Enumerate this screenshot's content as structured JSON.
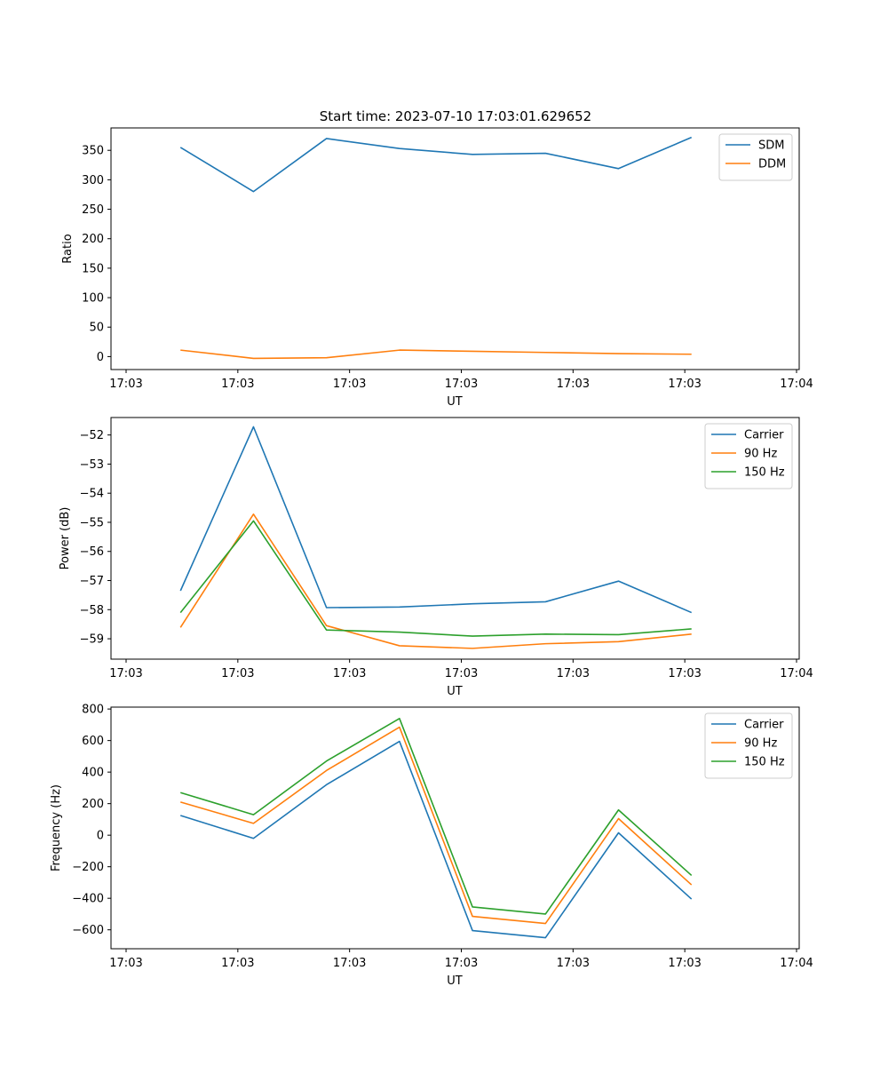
{
  "figure": {
    "title": "Start time: 2023-07-10 17:03:01.629652"
  },
  "colors": {
    "c0": "#1f77b4",
    "c1": "#ff7f0e",
    "c2": "#2ca02c"
  },
  "chart_data": [
    {
      "type": "line",
      "title": "",
      "xlabel": "UT",
      "ylabel": "Ratio",
      "grid": false,
      "legend": "top-right",
      "xlim": [
        0,
        9.0
      ],
      "xticks": [
        0,
        1.5,
        3.0,
        4.5,
        6.0,
        7.5,
        9.0
      ],
      "xtick_labels": [
        "17:03",
        "17:03",
        "17:03",
        "17:03",
        "17:03",
        "17:03",
        "17:04"
      ],
      "ylim": [
        -22,
        388
      ],
      "yticks": [
        0,
        50,
        100,
        150,
        200,
        250,
        300,
        350
      ],
      "ytick_labels": [
        "0",
        "50",
        "100",
        "150",
        "200",
        "250",
        "300",
        "350"
      ],
      "x": [
        0.73,
        1.71,
        2.69,
        3.67,
        4.65,
        5.63,
        6.61,
        7.59
      ],
      "series": [
        {
          "name": "SDM",
          "color": "c0",
          "values": [
            355,
            280,
            370,
            353,
            343,
            345,
            319,
            372
          ]
        },
        {
          "name": "DDM",
          "color": "c1",
          "values": [
            11,
            -3,
            -2,
            11,
            9,
            7,
            5,
            4
          ]
        }
      ]
    },
    {
      "type": "line",
      "title": "",
      "xlabel": "UT",
      "ylabel": "Power (dB)",
      "grid": false,
      "legend": "top-right",
      "xlim": [
        0,
        9.0
      ],
      "xticks": [
        0,
        1.5,
        3.0,
        4.5,
        6.0,
        7.5,
        9.0
      ],
      "xtick_labels": [
        "17:03",
        "17:03",
        "17:03",
        "17:03",
        "17:03",
        "17:03",
        "17:04"
      ],
      "ylim": [
        -59.7,
        -51.4
      ],
      "yticks": [
        -59,
        -58,
        -57,
        -56,
        -55,
        -54,
        -53,
        -52
      ],
      "ytick_labels": [
        "−59",
        "−58",
        "−57",
        "−56",
        "−55",
        "−54",
        "−53",
        "−52"
      ],
      "x": [
        0.73,
        1.71,
        2.69,
        3.67,
        4.65,
        5.63,
        6.61,
        7.59
      ],
      "series": [
        {
          "name": "Carrier",
          "color": "c0",
          "values": [
            -57.35,
            -51.72,
            -57.93,
            -57.91,
            -57.8,
            -57.73,
            -57.02,
            -58.1
          ]
        },
        {
          "name": "90 Hz",
          "color": "c1",
          "values": [
            -58.61,
            -54.72,
            -58.55,
            -59.24,
            -59.33,
            -59.17,
            -59.1,
            -58.84
          ]
        },
        {
          "name": "150 Hz",
          "color": "c2",
          "values": [
            -58.1,
            -54.95,
            -58.7,
            -58.77,
            -58.91,
            -58.84,
            -58.86,
            -58.66
          ]
        }
      ]
    },
    {
      "type": "line",
      "title": "",
      "xlabel": "UT",
      "ylabel": "Frequency (Hz)",
      "grid": false,
      "legend": "top-right",
      "xlim": [
        0,
        9.0
      ],
      "xticks": [
        0,
        1.5,
        3.0,
        4.5,
        6.0,
        7.5,
        9.0
      ],
      "xtick_labels": [
        "17:03",
        "17:03",
        "17:03",
        "17:03",
        "17:03",
        "17:03",
        "17:04"
      ],
      "ylim": [
        -720,
        812
      ],
      "yticks": [
        -600,
        -400,
        -200,
        0,
        200,
        400,
        600,
        800
      ],
      "ytick_labels": [
        "−600",
        "−400",
        "−200",
        "0",
        "200",
        "400",
        "600",
        "800"
      ],
      "x": [
        0.73,
        1.71,
        2.69,
        3.67,
        4.65,
        5.63,
        6.61,
        7.59
      ],
      "series": [
        {
          "name": "Carrier",
          "color": "c0",
          "values": [
            125,
            -20,
            320,
            595,
            -605,
            -650,
            15,
            -405
          ]
        },
        {
          "name": "90 Hz",
          "color": "c1",
          "values": [
            210,
            75,
            410,
            685,
            -515,
            -560,
            105,
            -315
          ]
        },
        {
          "name": "150 Hz",
          "color": "c2",
          "values": [
            270,
            130,
            470,
            740,
            -455,
            -500,
            160,
            -255
          ]
        }
      ]
    }
  ]
}
